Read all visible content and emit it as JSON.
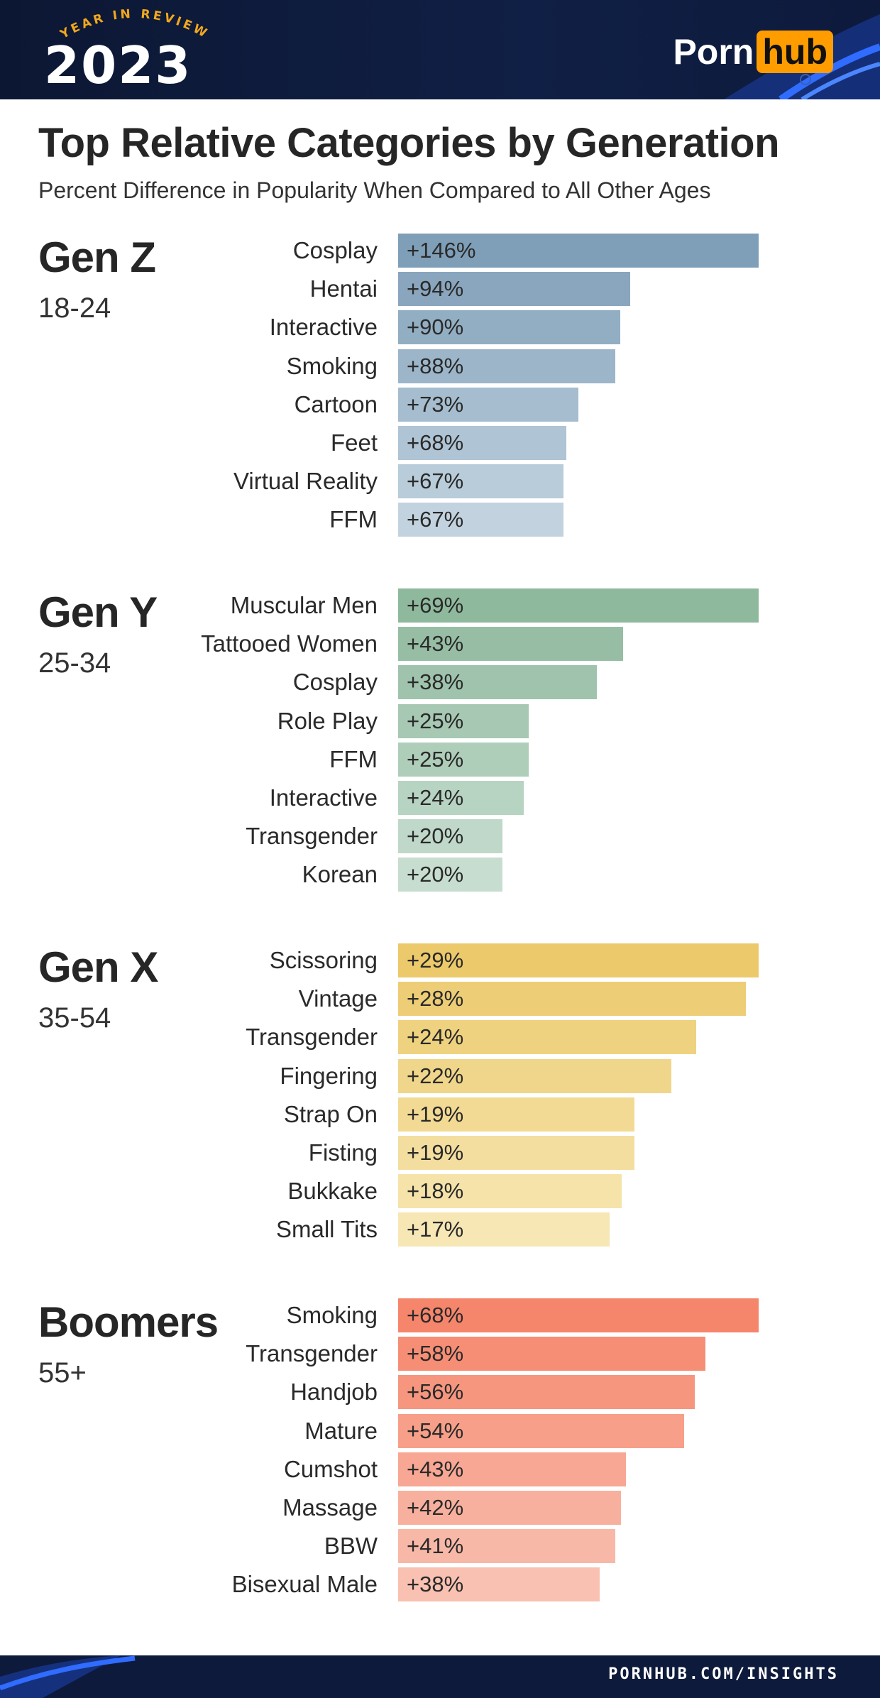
{
  "header": {
    "badge_text": "YEAR IN REVIEW",
    "year": "2023",
    "brand_left": "Porn",
    "brand_right": "hub"
  },
  "title": "Top Relative Categories by Generation",
  "subtitle": "Percent Difference in Popularity When Compared to All Other Ages",
  "footer": {
    "url": "PORNHUB.COM/INSIGHTS"
  },
  "colors": {
    "header_bg": "#0c1733",
    "brand_accent": "#ff9c00",
    "gen_z": [
      "#7f9fb8",
      "#c2d3df"
    ],
    "gen_y": [
      "#8fb99d",
      "#c7ddd0"
    ],
    "gen_x": [
      "#ecc96a",
      "#f6e7b4"
    ],
    "boomers": [
      "#f5856b",
      "#f9c1b2"
    ]
  },
  "chart_data": [
    {
      "type": "bar",
      "orientation": "horizontal",
      "group": "Gen Z",
      "age_range": "18-24",
      "categories": [
        "Cosplay",
        "Hentai",
        "Interactive",
        "Smoking",
        "Cartoon",
        "Feet",
        "Virtual Reality",
        "FFM"
      ],
      "values": [
        146,
        94,
        90,
        88,
        73,
        68,
        67,
        67
      ],
      "labels": [
        "+146%",
        "+94%",
        "+90%",
        "+88%",
        "+73%",
        "+68%",
        "+67%",
        "+67%"
      ]
    },
    {
      "type": "bar",
      "orientation": "horizontal",
      "group": "Gen Y",
      "age_range": "25-34",
      "categories": [
        "Muscular Men",
        "Tattooed Women",
        "Cosplay",
        "Role Play",
        "FFM",
        "Interactive",
        "Transgender",
        "Korean"
      ],
      "values": [
        69,
        43,
        38,
        25,
        25,
        24,
        20,
        20
      ],
      "labels": [
        "+69%",
        "+43%",
        "+38%",
        "+25%",
        "+25%",
        "+24%",
        "+20%",
        "+20%"
      ]
    },
    {
      "type": "bar",
      "orientation": "horizontal",
      "group": "Gen X",
      "age_range": "35-54",
      "categories": [
        "Scissoring",
        "Vintage",
        "Transgender",
        "Fingering",
        "Strap On",
        "Fisting",
        "Bukkake",
        "Small Tits"
      ],
      "values": [
        29,
        28,
        24,
        22,
        19,
        19,
        18,
        17
      ],
      "labels": [
        "+29%",
        "+28%",
        "+24%",
        "+22%",
        "+19%",
        "+19%",
        "+18%",
        "+17%"
      ]
    },
    {
      "type": "bar",
      "orientation": "horizontal",
      "group": "Boomers",
      "age_range": "55+",
      "categories": [
        "Smoking",
        "Transgender",
        "Handjob",
        "Mature",
        "Cumshot",
        "Massage",
        "BBW",
        "Bisexual Male"
      ],
      "values": [
        68,
        58,
        56,
        54,
        43,
        42,
        41,
        38
      ],
      "labels": [
        "+68%",
        "+58%",
        "+56%",
        "+54%",
        "+43%",
        "+42%",
        "+41%",
        "+38%"
      ]
    }
  ]
}
